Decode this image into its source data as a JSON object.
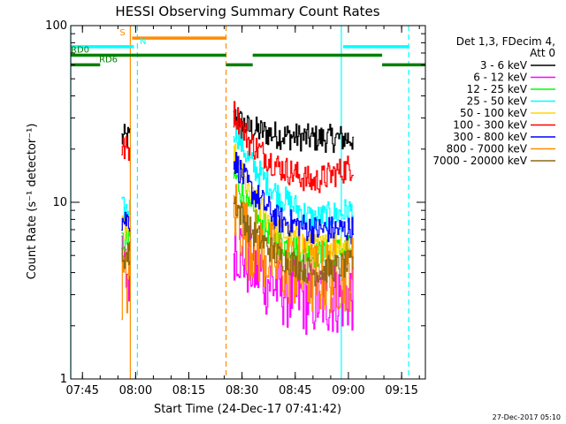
{
  "chart_data": {
    "type": "line",
    "title": "HESSI Observing Summary Count Rates",
    "xlabel": "Start Time (24-Dec-17 07:41:42)",
    "ylabel": "Count Rate (s⁻¹ detector⁻¹)",
    "y_scale": "log",
    "ylim": [
      1,
      100
    ],
    "xlim": [
      "07:41:42",
      "09:21:42"
    ],
    "x_ticks": [
      "07:45",
      "08:00",
      "08:15",
      "08:30",
      "08:45",
      "09:00",
      "09:15"
    ],
    "y_ticks": [
      "1",
      "10",
      "100"
    ],
    "legend_placement": "right",
    "legend_header": [
      "Det 1,3, FDecim 4,",
      "Att 0"
    ],
    "footer_date": "27-Dec-2017 05:10",
    "data_gaps": [
      {
        "start": "07:41:42",
        "end": "07:55:30"
      },
      {
        "start": "07:58:30",
        "end": "08:27:00"
      },
      {
        "start": "09:01:30",
        "end": "09:21:42"
      }
    ],
    "series": [
      {
        "name": "3 - 6 keV",
        "color": "#000000",
        "values": [
          {
            "x": "07:56",
            "y": 23
          },
          {
            "x": "07:58",
            "y": 23
          },
          {
            "x": "08:28",
            "y": 30
          },
          {
            "x": "08:32",
            "y": 26
          },
          {
            "x": "08:40",
            "y": 24
          },
          {
            "x": "08:50",
            "y": 23
          },
          {
            "x": "09:01",
            "y": 23
          }
        ]
      },
      {
        "name": "6 - 12 keV",
        "color": "#ff00ff",
        "values": [
          {
            "x": "07:56",
            "y": 4
          },
          {
            "x": "07:58",
            "y": 4
          },
          {
            "x": "08:28",
            "y": 6
          },
          {
            "x": "08:32",
            "y": 4.5
          },
          {
            "x": "08:40",
            "y": 3.3
          },
          {
            "x": "08:50",
            "y": 2.8
          },
          {
            "x": "09:01",
            "y": 3
          }
        ]
      },
      {
        "name": "12 - 25 keV",
        "color": "#00ff00",
        "values": [
          {
            "x": "07:56",
            "y": 6
          },
          {
            "x": "07:58",
            "y": 6
          },
          {
            "x": "08:28",
            "y": 14
          },
          {
            "x": "08:32",
            "y": 9
          },
          {
            "x": "08:40",
            "y": 6
          },
          {
            "x": "08:50",
            "y": 5
          },
          {
            "x": "09:01",
            "y": 5.5
          }
        ]
      },
      {
        "name": "25 - 50 keV",
        "color": "#00ffff",
        "values": [
          {
            "x": "07:56",
            "y": 9
          },
          {
            "x": "07:58",
            "y": 9
          },
          {
            "x": "08:28",
            "y": 26
          },
          {
            "x": "08:32",
            "y": 17
          },
          {
            "x": "08:40",
            "y": 11
          },
          {
            "x": "08:50",
            "y": 8
          },
          {
            "x": "09:01",
            "y": 9
          }
        ]
      },
      {
        "name": "50 - 100 keV",
        "color": "#ffd700",
        "values": [
          {
            "x": "07:56",
            "y": 7
          },
          {
            "x": "07:58",
            "y": 7
          },
          {
            "x": "08:28",
            "y": 18
          },
          {
            "x": "08:32",
            "y": 11
          },
          {
            "x": "08:40",
            "y": 7
          },
          {
            "x": "08:50",
            "y": 5.5
          },
          {
            "x": "09:01",
            "y": 6
          }
        ]
      },
      {
        "name": "100 - 300 keV",
        "color": "#ff0000",
        "values": [
          {
            "x": "07:56",
            "y": 20
          },
          {
            "x": "07:58",
            "y": 20
          },
          {
            "x": "08:28",
            "y": 32
          },
          {
            "x": "08:32",
            "y": 22
          },
          {
            "x": "08:40",
            "y": 16
          },
          {
            "x": "08:50",
            "y": 13
          },
          {
            "x": "09:01",
            "y": 16
          }
        ]
      },
      {
        "name": "300 - 800 keV",
        "color": "#0000ff",
        "values": [
          {
            "x": "07:56",
            "y": 8
          },
          {
            "x": "07:58",
            "y": 8
          },
          {
            "x": "08:28",
            "y": 17
          },
          {
            "x": "08:32",
            "y": 12
          },
          {
            "x": "08:40",
            "y": 8
          },
          {
            "x": "08:50",
            "y": 7
          },
          {
            "x": "09:01",
            "y": 7
          }
        ]
      },
      {
        "name": "800 - 7000 keV",
        "color": "#ff8c00",
        "values": [
          {
            "x": "07:56",
            "y": 3.5
          },
          {
            "x": "07:58",
            "y": 3.5
          },
          {
            "x": "08:28",
            "y": 9
          },
          {
            "x": "08:32",
            "y": 6
          },
          {
            "x": "08:40",
            "y": 4.5
          },
          {
            "x": "08:50",
            "y": 3.7
          },
          {
            "x": "09:01",
            "y": 4
          }
        ]
      },
      {
        "name": "7000 - 20000 keV",
        "color": "#8b6914",
        "values": [
          {
            "x": "07:56",
            "y": 5
          },
          {
            "x": "07:58",
            "y": 5
          },
          {
            "x": "08:28",
            "y": 10
          },
          {
            "x": "08:32",
            "y": 7
          },
          {
            "x": "08:40",
            "y": 5
          },
          {
            "x": "08:50",
            "y": 4
          },
          {
            "x": "09:01",
            "y": 4.5
          }
        ]
      }
    ],
    "annotations": [
      {
        "label": "S",
        "color": "#ff8c00",
        "y": 85,
        "start": "07:59:00",
        "end": "08:25:30",
        "row": 0
      },
      {
        "label": "N",
        "color": "#00ffff",
        "y": 76,
        "start": "07:41:42",
        "end": "07:59:30",
        "row": 1
      },
      {
        "label": "",
        "color": "#00ffff",
        "y": 76,
        "start": "08:58:30",
        "end": "09:17:00",
        "row": 1
      },
      {
        "label": "RD0",
        "color": "#008000",
        "y": 68,
        "start": "07:41:42",
        "end": "08:25:30",
        "row": 2
      },
      {
        "label": "",
        "color": "#008000",
        "y": 68,
        "start": "08:33:00",
        "end": "09:09:30",
        "row": 2
      },
      {
        "label": "RD6",
        "color": "#008000",
        "y": 60,
        "start": "07:41:42",
        "end": "07:50:00",
        "row": 3
      },
      {
        "label": "",
        "color": "#008000",
        "y": 60,
        "start": "08:25:30",
        "end": "08:33:00",
        "row": 3
      },
      {
        "label": "",
        "color": "#008000",
        "y": 60,
        "start": "09:09:30",
        "end": "09:21:42",
        "row": 3
      }
    ],
    "vertical_lines": [
      {
        "x": "07:41:42",
        "color": "#00ffff",
        "style": "solid"
      },
      {
        "x": "07:58:30",
        "color": "#ff8c00",
        "style": "solid"
      },
      {
        "x": "08:00:30",
        "color": "#00ffff",
        "style": "dashed"
      },
      {
        "x": "08:25:30",
        "color": "#ff8c00",
        "style": "dashed"
      },
      {
        "x": "08:58:00",
        "color": "#00ffff",
        "style": "solid"
      },
      {
        "x": "09:17:00",
        "color": "#00ffff",
        "style": "dashed"
      }
    ]
  }
}
